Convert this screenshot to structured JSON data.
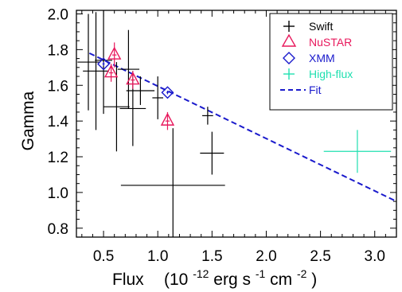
{
  "chart_data": {
    "type": "scatter",
    "xlabel_main": "Flux",
    "xlabel_unit_open": "(10",
    "xlabel_unit_exp1": "-12",
    "xlabel_unit_erg": " erg s",
    "xlabel_unit_exp2": "-1",
    "xlabel_unit_cm": " cm",
    "xlabel_unit_exp3": "-2",
    "xlabel_unit_close": ")",
    "ylabel": "Gamma",
    "xlim": [
      0.25,
      3.2
    ],
    "ylim": [
      0.75,
      2.02
    ],
    "x_ticks": [
      "0.5",
      "1.0",
      "1.5",
      "2.0",
      "2.5",
      "3.0"
    ],
    "x_tick_values": [
      0.5,
      1.0,
      1.5,
      2.0,
      2.5,
      3.0
    ],
    "y_ticks": [
      "0.8",
      "1.0",
      "1.2",
      "1.4",
      "1.6",
      "1.8",
      "2.0"
    ],
    "y_tick_values": [
      0.8,
      1.0,
      1.2,
      1.4,
      1.6,
      1.8,
      2.0
    ],
    "legend_position": "top-right",
    "legend": [
      {
        "label": "Swift",
        "color": "#000000",
        "marker": "plus"
      },
      {
        "label": "NuSTAR",
        "color": "#e8185c",
        "marker": "triangle"
      },
      {
        "label": "XMM",
        "color": "#1a1acc",
        "marker": "diamond"
      },
      {
        "label": "High-flux",
        "color": "#20e0b0",
        "marker": "plus"
      },
      {
        "label": "Fit",
        "color": "#1a1acc",
        "marker": "dashed-line"
      }
    ],
    "series": [
      {
        "name": "Swift",
        "color": "#000000",
        "points": [
          {
            "x": 0.36,
            "y": 1.73,
            "xerr": 0.1,
            "yerr": 0.27
          },
          {
            "x": 0.43,
            "y": 1.68,
            "xerr": 0.12,
            "yerr": 0.33
          },
          {
            "x": 0.5,
            "y": 1.74,
            "xerr": 0.08,
            "yerr": 0.3
          },
          {
            "x": 0.62,
            "y": 1.48,
            "xerr": 0.12,
            "yerr": 0.25
          },
          {
            "x": 0.73,
            "y": 1.69,
            "xerr": 0.1,
            "yerr": 0.22
          },
          {
            "x": 0.77,
            "y": 1.47,
            "xerr": 0.12,
            "yerr": 0.21
          },
          {
            "x": 0.84,
            "y": 1.57,
            "xerr": 0.13,
            "yerr": 0.08
          },
          {
            "x": 1.0,
            "y": 1.53,
            "xerr": 0.05,
            "yerr": 0.12
          },
          {
            "x": 1.14,
            "y": 1.04,
            "xerr": 0.48,
            "yerr": 0.32
          },
          {
            "x": 1.46,
            "y": 1.43,
            "xerr": 0.05,
            "yerr": 0.05
          },
          {
            "x": 1.5,
            "y": 1.22,
            "xerr": 0.11,
            "yerr": 0.12
          }
        ]
      },
      {
        "name": "NuSTAR",
        "color": "#e8185c",
        "points": [
          {
            "x": 0.57,
            "y": 1.67,
            "xerr": 0.02,
            "yerr": 0.05
          },
          {
            "x": 0.6,
            "y": 1.77,
            "xerr": 0.02,
            "yerr": 0.07
          },
          {
            "x": 0.77,
            "y": 1.63,
            "xerr": 0.02,
            "yerr": 0.05
          },
          {
            "x": 1.09,
            "y": 1.4,
            "xerr": 0.02,
            "yerr": 0.05
          }
        ]
      },
      {
        "name": "XMM",
        "color": "#1a1acc",
        "points": [
          {
            "x": 0.5,
            "y": 1.72,
            "xerr": 0.01,
            "yerr": 0.01
          },
          {
            "x": 1.09,
            "y": 1.56,
            "xerr": 0.01,
            "yerr": 0.01
          }
        ]
      },
      {
        "name": "High-flux",
        "color": "#20e0b0",
        "points": [
          {
            "x": 2.84,
            "y": 1.23,
            "xerr": 0.31,
            "yerr": 0.12
          }
        ]
      }
    ],
    "fit": {
      "name": "Fit",
      "color": "#1a1acc",
      "x": [
        0.37,
        3.2
      ],
      "y": [
        1.78,
        0.95
      ]
    }
  }
}
